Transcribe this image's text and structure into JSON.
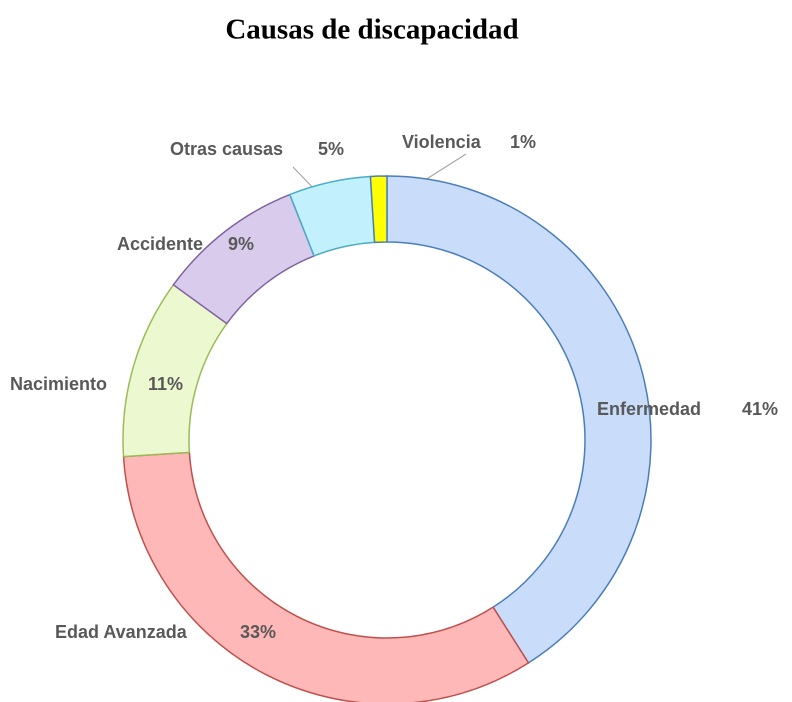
{
  "chart_data": {
    "type": "donut",
    "title": "Causas de discapacidad",
    "categories": [
      "Enfermedad",
      "Edad Avanzada",
      "Nacimiento",
      "Accidente",
      "Otras causas",
      "Violencia"
    ],
    "values": [
      41,
      33,
      11,
      9,
      5,
      1
    ],
    "value_labels": [
      "41%",
      "33%",
      "11%",
      "9%",
      "5%",
      "1%"
    ],
    "colors": [
      "#c9dcf9",
      "#ffb8b8",
      "#ecf8cf",
      "#d9cbeb",
      "#c2f0fc",
      "#ffff00"
    ]
  }
}
